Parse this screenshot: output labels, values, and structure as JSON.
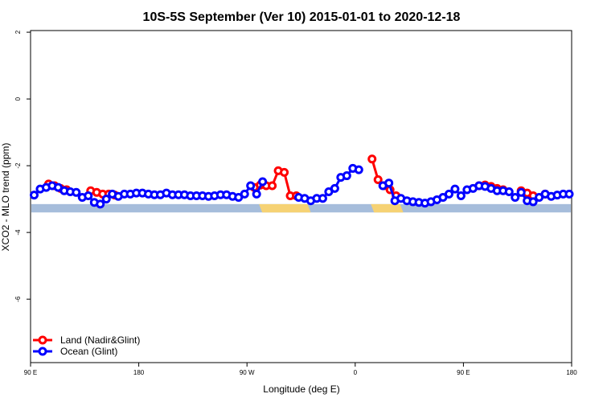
{
  "chart_data": {
    "type": "line",
    "title": "10S-5S September (Ver 10)   2015-01-01 to 2020-12-18",
    "xlabel": "Longitude (deg E)",
    "ylabel": "XCO2 - MLO trend (ppm)",
    "xlim": [
      90,
      540
    ],
    "ylim": [
      -7.9,
      2.05
    ],
    "x_ticks": [
      {
        "value": 90,
        "label": "90 E"
      },
      {
        "value": 180,
        "label": "180"
      },
      {
        "value": 270,
        "label": "90 W"
      },
      {
        "value": 360,
        "label": "0"
      },
      {
        "value": 450,
        "label": "90 E"
      },
      {
        "value": 540,
        "label": "180"
      }
    ],
    "y_ticks": [
      {
        "value": 2,
        "label": "2"
      },
      {
        "value": 0,
        "label": "0"
      },
      {
        "value": -2,
        "label": "-2"
      },
      {
        "value": -4,
        "label": "-4"
      },
      {
        "value": -6,
        "label": "-6"
      }
    ],
    "grid": false,
    "legend_position": "bottom-left",
    "land_strip": {
      "y_range": [
        -3.4,
        -3.15
      ],
      "ocean_color": "#a6bddb",
      "land_color": "#f6d274",
      "land_segments": [
        [
          280,
          323
        ],
        [
          373,
          400
        ]
      ]
    },
    "series": [
      {
        "name": "Land (Nadir&Glint)",
        "color": "#ff0000",
        "segments": [
          {
            "x": [
              105,
              110,
              115,
              120
            ],
            "y": [
              -2.55,
              -2.6,
              -2.68,
              -2.72
            ]
          },
          {
            "x": [
              140,
              145,
              150
            ],
            "y": [
              -2.75,
              -2.8,
              -2.85
            ]
          },
          {
            "x": [
              155,
              160
            ],
            "y": [
              -2.85,
              -2.88
            ]
          },
          {
            "x": [
              276,
              281,
              286,
              291,
              296,
              301,
              306,
              311
            ],
            "y": [
              -2.65,
              -2.58,
              -2.6,
              -2.6,
              -2.15,
              -2.2,
              -2.9,
              -2.9
            ]
          },
          {
            "x": [
              374,
              379,
              384,
              389,
              394
            ],
            "y": [
              -1.8,
              -2.42,
              -2.6,
              -2.72,
              -2.9
            ]
          },
          {
            "x": [
              463,
              468,
              473,
              478,
              483
            ],
            "y": [
              -2.6,
              -2.58,
              -2.62,
              -2.68,
              -2.72
            ]
          },
          {
            "x": [
              498,
              503,
              508
            ],
            "y": [
              -2.75,
              -2.82,
              -2.9
            ]
          },
          {
            "x": [
              518
            ],
            "y": [
              -2.85
            ]
          }
        ]
      },
      {
        "name": "Ocean (Glint)",
        "color": "#0000ff",
        "x": [
          93,
          98,
          103,
          108,
          113,
          118,
          123,
          128,
          133,
          138,
          143,
          148,
          153,
          158,
          163,
          168,
          173,
          178,
          183,
          188,
          193,
          198,
          203,
          208,
          213,
          218,
          223,
          228,
          233,
          238,
          243,
          248,
          253,
          258,
          263,
          268,
          273,
          278,
          283,
          288,
          293,
          298,
          303,
          308,
          313,
          318,
          323,
          328,
          333,
          338,
          343,
          348,
          353,
          358,
          363,
          368,
          373,
          378,
          383,
          388,
          393,
          398,
          403,
          408,
          413,
          418,
          423,
          428,
          433,
          438,
          443,
          448,
          453,
          458,
          463,
          468,
          473,
          478,
          483,
          488,
          493,
          498,
          503,
          508,
          513,
          518,
          523,
          528,
          533,
          538
        ],
        "y": [
          -2.88,
          -2.7,
          -2.65,
          -2.6,
          -2.65,
          -2.75,
          -2.78,
          -2.8,
          -2.95,
          -2.9,
          -3.1,
          -3.15,
          -3.0,
          -2.85,
          -2.92,
          -2.85,
          -2.85,
          -2.82,
          -2.82,
          -2.85,
          -2.87,
          -2.87,
          -2.82,
          -2.87,
          -2.87,
          -2.87,
          -2.9,
          -2.9,
          -2.9,
          -2.92,
          -2.9,
          -2.87,
          -2.87,
          -2.92,
          -2.95,
          -2.85,
          -2.6,
          -2.85,
          -2.48,
          null,
          null,
          null,
          null,
          null,
          -2.95,
          -2.98,
          -3.05,
          -2.98,
          -2.98,
          -2.78,
          -2.68,
          -2.35,
          -2.3,
          -2.08,
          -2.12,
          null,
          null,
          null,
          -2.6,
          -2.52,
          -3.05,
          -2.98,
          -3.05,
          -3.08,
          -3.1,
          -3.12,
          -3.08,
          -3.02,
          -2.95,
          -2.85,
          -2.7,
          -2.9,
          -2.72,
          -2.68,
          -2.6,
          -2.62,
          -2.68,
          -2.75,
          -2.75,
          -2.78,
          -2.95,
          -2.8,
          -3.05,
          -3.08,
          -2.95,
          -2.85,
          -2.92,
          -2.88,
          -2.85,
          -2.85
        ]
      }
    ]
  }
}
